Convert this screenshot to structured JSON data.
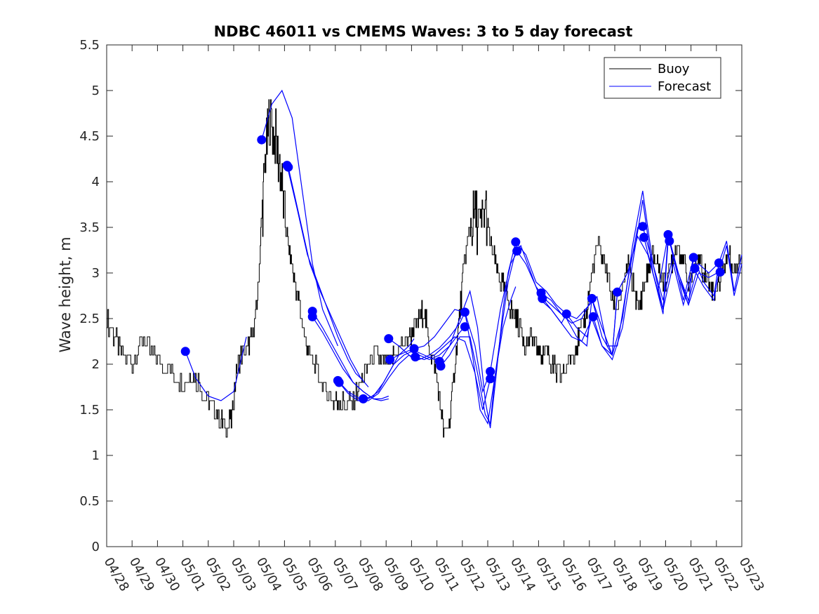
{
  "chart_data": {
    "type": "line",
    "title": "NDBC 46011 vs CMEMS Waves: 3 to 5 day forecast",
    "xlabel": "",
    "ylabel": "Wave height, m",
    "xlim": [
      "04/28",
      "05/23"
    ],
    "ylim": [
      0,
      5.5
    ],
    "yticks": [
      0,
      0.5,
      1,
      1.5,
      2,
      2.5,
      3,
      3.5,
      4,
      4.5,
      5,
      5.5
    ],
    "xticklabels": [
      "04/28",
      "04/29",
      "04/30",
      "05/01",
      "05/02",
      "05/03",
      "05/04",
      "05/05",
      "05/06",
      "05/07",
      "05/08",
      "05/09",
      "05/10",
      "05/11",
      "05/12",
      "05/13",
      "05/14",
      "05/15",
      "05/16",
      "05/17",
      "05/18",
      "05/19",
      "05/20",
      "05/21",
      "05/22",
      "05/23"
    ],
    "grid": false,
    "legend": {
      "position": "top-right",
      "entries": [
        "Buoy",
        "Forecast"
      ]
    },
    "colors": {
      "buoy": "#000000",
      "forecast": "#0000ff",
      "markers": "#0000ff"
    },
    "series": [
      {
        "name": "Buoy",
        "x_day": [
          0,
          0.3,
          0.6,
          1.0,
          1.4,
          1.8,
          2.2,
          2.6,
          3.0,
          3.3,
          3.6,
          3.9,
          4.2,
          4.5,
          4.7,
          4.9,
          5.1,
          5.3,
          5.6,
          5.8,
          5.95,
          6.1,
          6.25,
          6.4,
          6.6,
          6.8,
          7.0,
          7.2,
          7.4,
          7.6,
          7.8,
          8.0,
          8.3,
          8.6,
          8.9,
          9.1,
          9.4,
          9.7,
          10.0,
          10.3,
          10.6,
          10.9,
          11.1,
          11.3,
          11.6,
          11.9,
          12.1,
          12.3,
          12.5,
          12.7,
          12.9,
          13.1,
          13.3,
          13.5,
          13.7,
          13.9,
          14.1,
          14.3,
          14.5,
          14.7,
          14.9,
          15.1,
          15.3,
          15.5,
          15.7,
          15.9,
          16.1,
          16.3,
          16.5,
          16.7,
          16.9,
          17.1,
          17.3,
          17.5,
          17.7,
          17.9,
          18.1,
          18.3,
          18.5,
          18.7,
          18.9,
          19.1,
          19.3,
          19.5,
          19.7,
          19.9,
          20.1,
          20.3,
          20.5,
          20.7,
          20.9,
          21.1,
          21.3,
          21.5,
          21.7,
          21.9,
          22.1,
          22.3,
          22.5,
          22.7,
          22.9,
          23.1,
          23.3,
          23.5,
          23.7,
          23.9,
          24.1,
          24.3,
          24.5,
          24.7,
          25.0
        ],
        "values": [
          2.5,
          2.3,
          2.1,
          2.0,
          2.3,
          2.1,
          2.0,
          1.9,
          1.8,
          1.9,
          1.8,
          1.6,
          1.5,
          1.4,
          1.3,
          1.4,
          1.9,
          2.1,
          2.2,
          2.4,
          2.8,
          3.6,
          4.3,
          4.7,
          4.5,
          4.2,
          3.6,
          3.2,
          2.9,
          2.6,
          2.3,
          2.1,
          1.9,
          1.7,
          1.6,
          1.6,
          1.55,
          1.6,
          1.8,
          2.0,
          2.1,
          2.0,
          2.0,
          2.1,
          2.2,
          2.3,
          2.4,
          2.5,
          2.6,
          2.2,
          2.0,
          1.6,
          1.2,
          1.4,
          2.0,
          2.6,
          3.2,
          3.5,
          3.6,
          3.5,
          3.7,
          3.3,
          3.1,
          2.9,
          2.8,
          2.6,
          2.5,
          2.4,
          2.2,
          2.3,
          2.2,
          2.1,
          2.2,
          2.0,
          1.9,
          1.85,
          2.0,
          2.1,
          2.2,
          2.4,
          2.6,
          3.0,
          3.3,
          3.2,
          3.0,
          2.7,
          2.6,
          2.8,
          3.1,
          2.9,
          2.6,
          2.8,
          3.0,
          3.2,
          3.1,
          2.9,
          3.0,
          3.2,
          3.3,
          3.1,
          2.9,
          3.0,
          3.2,
          3.0,
          2.9,
          2.8,
          2.9,
          3.1,
          3.2,
          3.0,
          3.2
        ]
      },
      {
        "name": "Forecast",
        "runs": [
          {
            "x_day": [
              3.1,
              3.5,
              4.0,
              4.5,
              5.0,
              5.5
            ],
            "values": [
              2.14,
              1.85,
              1.65,
              1.6,
              1.7,
              2.3
            ]
          },
          {
            "x_day": [
              6.1,
              6.5,
              6.9,
              7.3,
              7.7,
              8.1,
              8.5,
              8.8,
              9.1
            ],
            "values": [
              4.46,
              4.85,
              5.0,
              4.7,
              3.9,
              3.1,
              2.6,
              2.4,
              2.2
            ]
          },
          {
            "x_day": [
              7.1,
              7.5,
              7.9,
              8.3,
              8.7,
              9.1,
              9.5,
              9.8,
              10.1
            ],
            "values": [
              4.18,
              3.7,
              3.2,
              2.9,
              2.6,
              2.3,
              2.05,
              1.9,
              1.82
            ]
          },
          {
            "x_day": [
              7.15,
              7.6,
              8.0,
              8.4,
              8.8,
              9.2,
              9.6,
              10.0,
              10.3
            ],
            "values": [
              4.16,
              3.6,
              3.1,
              2.8,
              2.55,
              2.3,
              2.05,
              1.85,
              1.75
            ]
          },
          {
            "x_day": [
              8.1,
              8.5,
              8.9,
              9.3,
              9.7,
              10.1,
              10.5,
              10.8,
              11.1
            ],
            "values": [
              2.58,
              2.4,
              2.2,
              2.0,
              1.8,
              1.7,
              1.62,
              1.6,
              1.62
            ]
          },
          {
            "x_day": [
              8.1,
              8.5,
              8.9,
              9.3,
              9.7,
              10.1,
              10.5,
              10.8,
              11.1
            ],
            "values": [
              2.52,
              2.35,
              2.15,
              1.95,
              1.8,
              1.7,
              1.62,
              1.62,
              1.65
            ]
          },
          {
            "x_day": [
              9.1,
              9.5,
              9.9,
              10.3,
              10.7,
              11.1,
              11.5,
              11.9,
              12.1
            ],
            "values": [
              1.82,
              1.7,
              1.63,
              1.62,
              1.7,
              1.9,
              2.1,
              2.2,
              2.28
            ]
          },
          {
            "x_day": [
              9.15,
              9.5,
              9.9,
              10.3,
              10.7,
              11.1,
              11.5,
              11.9,
              12.1
            ],
            "values": [
              1.8,
              1.68,
              1.6,
              1.6,
              1.68,
              1.85,
              2.0,
              2.1,
              2.05
            ]
          },
          {
            "x_day": [
              10.1,
              10.5,
              10.9,
              11.3,
              11.7,
              12.1,
              12.5,
              12.9,
              13.1
            ],
            "values": [
              1.62,
              1.65,
              1.8,
              2.0,
              2.1,
              2.15,
              2.1,
              2.05,
              2.08
            ]
          },
          {
            "x_day": [
              11.1,
              11.5,
              11.9,
              12.3,
              12.7,
              13.1,
              13.5,
              13.9,
              14.1
            ],
            "values": [
              2.28,
              2.2,
              2.1,
              2.05,
              2.1,
              2.18,
              2.3,
              2.45,
              2.57
            ]
          },
          {
            "x_day": [
              11.15,
              11.5,
              11.9,
              12.3,
              12.7,
              13.1,
              13.5,
              13.9,
              14.1
            ],
            "values": [
              2.05,
              2.1,
              2.15,
              2.1,
              2.05,
              2.1,
              2.2,
              2.35,
              2.41
            ]
          },
          {
            "x_day": [
              12.1,
              12.5,
              12.9,
              13.3,
              13.7,
              14.1,
              14.5,
              14.8,
              15.1
            ],
            "values": [
              2.17,
              2.2,
              2.3,
              2.45,
              2.6,
              2.57,
              2.2,
              1.7,
              1.92
            ]
          },
          {
            "x_day": [
              12.15,
              12.5,
              12.9,
              13.3,
              13.7,
              14.1,
              14.5,
              14.8,
              15.1
            ],
            "values": [
              2.08,
              2.05,
              2.1,
              2.2,
              2.3,
              2.25,
              1.9,
              1.5,
              1.84
            ]
          },
          {
            "x_day": [
              13.1,
              13.5,
              13.9,
              14.3,
              14.6,
              14.9,
              15.1,
              15.3,
              15.6,
              15.8,
              16.1
            ],
            "values": [
              2.03,
              2.2,
              2.5,
              2.8,
              2.4,
              1.6,
              1.3,
              1.8,
              2.6,
              3.0,
              3.34
            ]
          },
          {
            "x_day": [
              13.15,
              13.5,
              13.9,
              14.3,
              14.6,
              14.9,
              15.1,
              15.3,
              15.6,
              15.8,
              16.1
            ],
            "values": [
              1.98,
              2.1,
              2.3,
              2.3,
              1.9,
              1.45,
              1.35,
              1.9,
              2.5,
              2.9,
              3.24
            ]
          },
          {
            "x_day": [
              14.1,
              14.4,
              14.7,
              15.0,
              15.3,
              15.6,
              15.9,
              16.1
            ],
            "values": [
              2.57,
              2.1,
              1.5,
              1.35,
              1.9,
              2.4,
              2.7,
              2.85
            ]
          },
          {
            "x_day": [
              15.1,
              15.5,
              15.9,
              16.3,
              16.7,
              17.1,
              17.5,
              17.9,
              18.1
            ],
            "values": [
              1.92,
              2.6,
              3.1,
              3.3,
              3.0,
              2.7,
              2.6,
              2.45,
              2.55
            ]
          },
          {
            "x_day": [
              16.1,
              16.5,
              16.9,
              17.3,
              17.7,
              18.1,
              18.5,
              18.9,
              19.1
            ],
            "values": [
              3.34,
              3.2,
              2.9,
              2.8,
              2.65,
              2.55,
              2.4,
              2.3,
              2.52
            ]
          },
          {
            "x_day": [
              16.15,
              16.5,
              16.9,
              17.3,
              17.7,
              18.1,
              18.5,
              18.9,
              19.1
            ],
            "values": [
              3.24,
              3.1,
              2.85,
              2.7,
              2.6,
              2.5,
              2.3,
              2.2,
              2.72
            ]
          },
          {
            "x_day": [
              17.1,
              17.5,
              17.9,
              18.3,
              18.7,
              19.1,
              19.5,
              19.9,
              20.1
            ],
            "values": [
              2.78,
              2.7,
              2.55,
              2.45,
              2.5,
              2.72,
              2.4,
              2.1,
              2.79
            ]
          },
          {
            "x_day": [
              17.15,
              17.5,
              17.9,
              18.3,
              18.7,
              19.1,
              19.5,
              19.9,
              20.1
            ],
            "values": [
              2.72,
              2.6,
              2.45,
              2.3,
              2.25,
              2.5,
              2.2,
              2.1,
              2.78
            ]
          },
          {
            "x_day": [
              18.1,
              18.5,
              18.9,
              19.3,
              19.7,
              20.1,
              20.5,
              20.9,
              21.1
            ],
            "values": [
              2.55,
              2.5,
              2.62,
              2.74,
              2.2,
              2.2,
              2.9,
              3.5,
              3.51
            ]
          },
          {
            "x_day": [
              19.1,
              19.5,
              19.9,
              20.3,
              20.7,
              21.1,
              21.5,
              21.9,
              22.1
            ],
            "values": [
              2.72,
              2.3,
              2.1,
              2.5,
              3.3,
              3.9,
              3.1,
              2.6,
              3.42
            ]
          },
          {
            "x_day": [
              19.15,
              19.5,
              19.9,
              20.3,
              20.7,
              21.1,
              21.5,
              21.9,
              22.1
            ],
            "values": [
              2.52,
              2.2,
              2.05,
              2.4,
              3.1,
              3.8,
              3.0,
              2.55,
              3.35
            ]
          },
          {
            "x_day": [
              20.1,
              20.5,
              20.9,
              21.3,
              21.7,
              22.1,
              22.5,
              22.9,
              23.1
            ],
            "values": [
              2.79,
              3.0,
              3.4,
              3.2,
              2.8,
              3.42,
              3.0,
              2.65,
              3.17
            ]
          },
          {
            "x_day": [
              21.1,
              21.5,
              21.9,
              22.3,
              22.7,
              23.1,
              23.5,
              23.9,
              24.1
            ],
            "values": [
              3.51,
              3.1,
              2.7,
              3.2,
              2.7,
              3.17,
              2.9,
              2.75,
              3.11
            ]
          },
          {
            "x_day": [
              21.15,
              21.5,
              21.9,
              22.3,
              22.7,
              23.1,
              23.5,
              23.9,
              24.1
            ],
            "values": [
              3.39,
              3.0,
              2.6,
              3.1,
              2.65,
              3.05,
              2.85,
              2.7,
              3.01
            ]
          },
          {
            "x_day": [
              22.1,
              22.5,
              22.9,
              23.3,
              23.7,
              24.1,
              24.4,
              24.7,
              25.0
            ],
            "values": [
              3.42,
              3.0,
              2.7,
              3.1,
              3.0,
              3.11,
              3.35,
              2.8,
              3.2
            ]
          },
          {
            "x_day": [
              22.15,
              22.5,
              22.9,
              23.3,
              23.7,
              24.1,
              24.4,
              24.7,
              25.0
            ],
            "values": [
              3.35,
              2.95,
              2.65,
              3.0,
              2.95,
              3.01,
              3.3,
              2.75,
              3.1
            ]
          }
        ],
        "markers": {
          "x_day": [
            3.1,
            6.1,
            7.1,
            7.15,
            8.1,
            8.1,
            9.1,
            9.15,
            10.1,
            11.1,
            11.15,
            12.1,
            12.15,
            13.1,
            13.15,
            14.1,
            14.1,
            15.1,
            15.1,
            16.1,
            16.15,
            17.1,
            17.15,
            18.1,
            19.1,
            19.15,
            20.1,
            21.1,
            21.15,
            22.1,
            22.15,
            23.1,
            23.15,
            24.1,
            24.15
          ],
          "values": [
            2.14,
            4.46,
            4.18,
            4.16,
            2.58,
            2.52,
            1.82,
            1.8,
            1.62,
            2.28,
            2.05,
            2.17,
            2.08,
            2.03,
            1.98,
            2.57,
            2.41,
            1.92,
            1.84,
            3.34,
            3.24,
            2.78,
            2.72,
            2.55,
            2.72,
            2.52,
            2.79,
            3.51,
            3.39,
            3.42,
            3.35,
            3.17,
            3.05,
            3.11,
            3.01
          ]
        }
      }
    ]
  }
}
